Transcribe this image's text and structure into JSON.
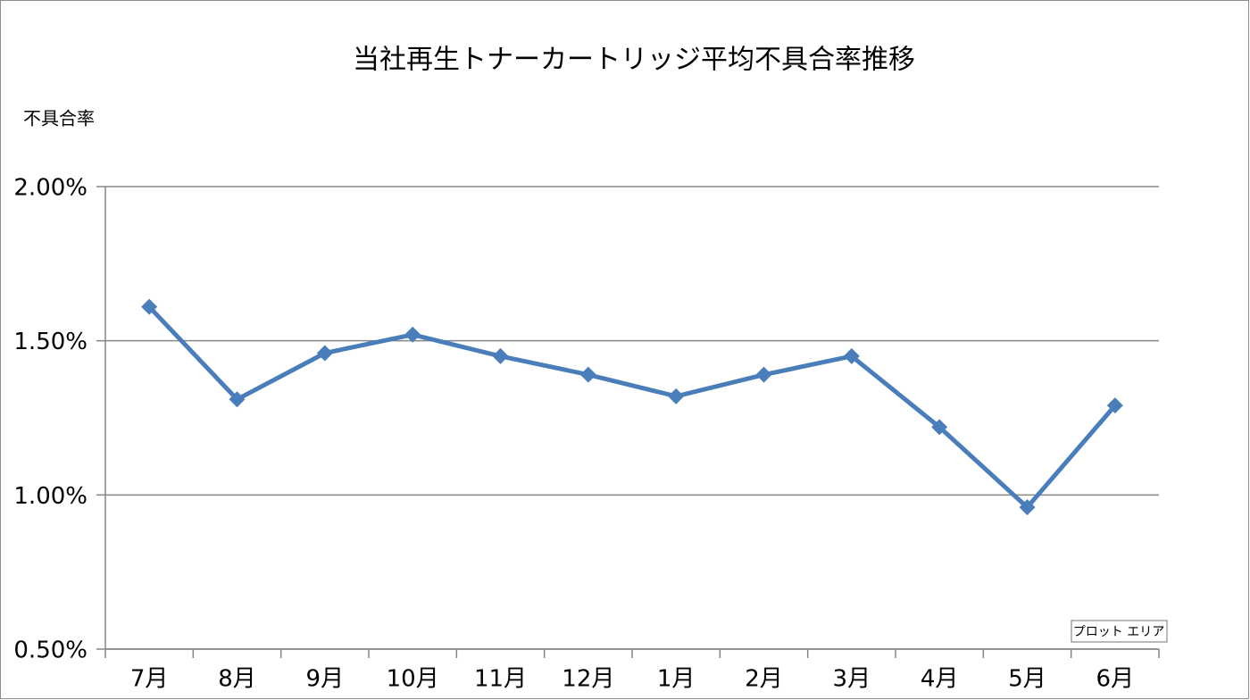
{
  "chart_data": {
    "type": "line",
    "title": "当社再生トナーカートリッジ平均不具合率推移",
    "y_label": "不具合率",
    "categories": [
      "7月",
      "8月",
      "9月",
      "10月",
      "11月",
      "12月",
      "1月",
      "2月",
      "3月",
      "4月",
      "5月",
      "6月"
    ],
    "series": [
      {
        "name": "不具合率",
        "color": "#4a7ebb",
        "values": [
          1.61,
          1.31,
          1.46,
          1.52,
          1.45,
          1.39,
          1.32,
          1.39,
          1.45,
          1.22,
          0.96,
          1.29
        ]
      }
    ],
    "ylim": [
      0.5,
      2.0
    ],
    "yticks": [
      {
        "value": 0.5,
        "label": "0.50%"
      },
      {
        "value": 1.0,
        "label": "1.00%"
      },
      {
        "value": 1.5,
        "label": "1.50%"
      },
      {
        "value": 2.0,
        "label": "2.00%"
      }
    ],
    "grid": true,
    "tooltip": "プロット エリア"
  }
}
